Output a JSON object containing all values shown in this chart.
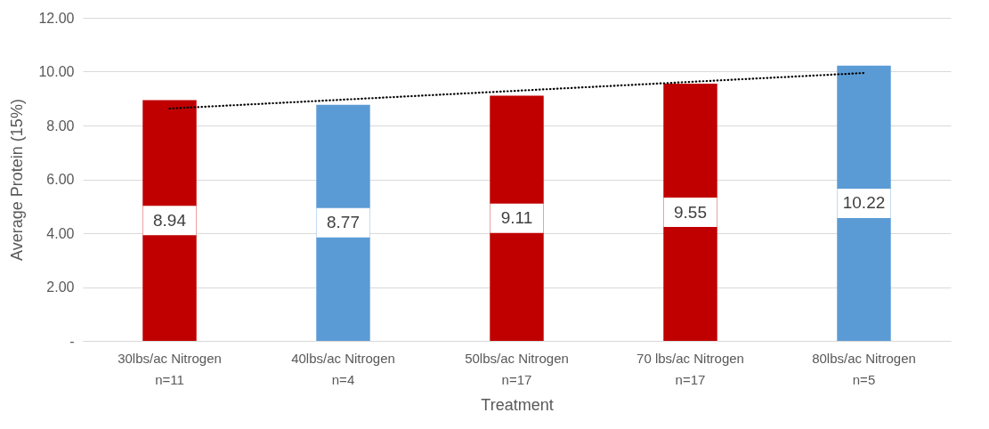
{
  "chart_data": {
    "type": "bar",
    "xlabel": "Treatment",
    "ylabel": "Average Protein (15%)",
    "categories": [
      "30lbs/ac Nitrogen\nn=11",
      "40lbs/ac Nitrogen\nn=4",
      "50lbs/ac Nitrogen\nn=17",
      "70 lbs/ac Nitrogen\nn=17",
      "80lbs/ac Nitrogen\nn=5"
    ],
    "series": [
      {
        "colors": [
          "#c00000",
          "#5b9bd5",
          "#c00000",
          "#c00000",
          "#5b9bd5"
        ],
        "values": [
          8.94,
          8.77,
          9.11,
          9.55,
          10.22
        ],
        "value_labels": [
          "8.94",
          "8.77",
          "9.11",
          "9.55",
          "10.22"
        ]
      },
      {
        "type": "line",
        "color": "#000000",
        "line_style": "dotted",
        "values": [
          8.63,
          8.96,
          9.29,
          9.62,
          9.95
        ]
      }
    ],
    "ylim": [
      0,
      12
    ],
    "yticks": [
      {
        "value": 0,
        "label": "-"
      },
      {
        "value": 2,
        "label": "2.00"
      },
      {
        "value": 4,
        "label": "4.00"
      },
      {
        "value": 6,
        "label": "6.00"
      },
      {
        "value": 8,
        "label": "8.00"
      },
      {
        "value": 10,
        "label": "10.00"
      },
      {
        "value": 12,
        "label": "12.00"
      }
    ],
    "grid": "y"
  }
}
